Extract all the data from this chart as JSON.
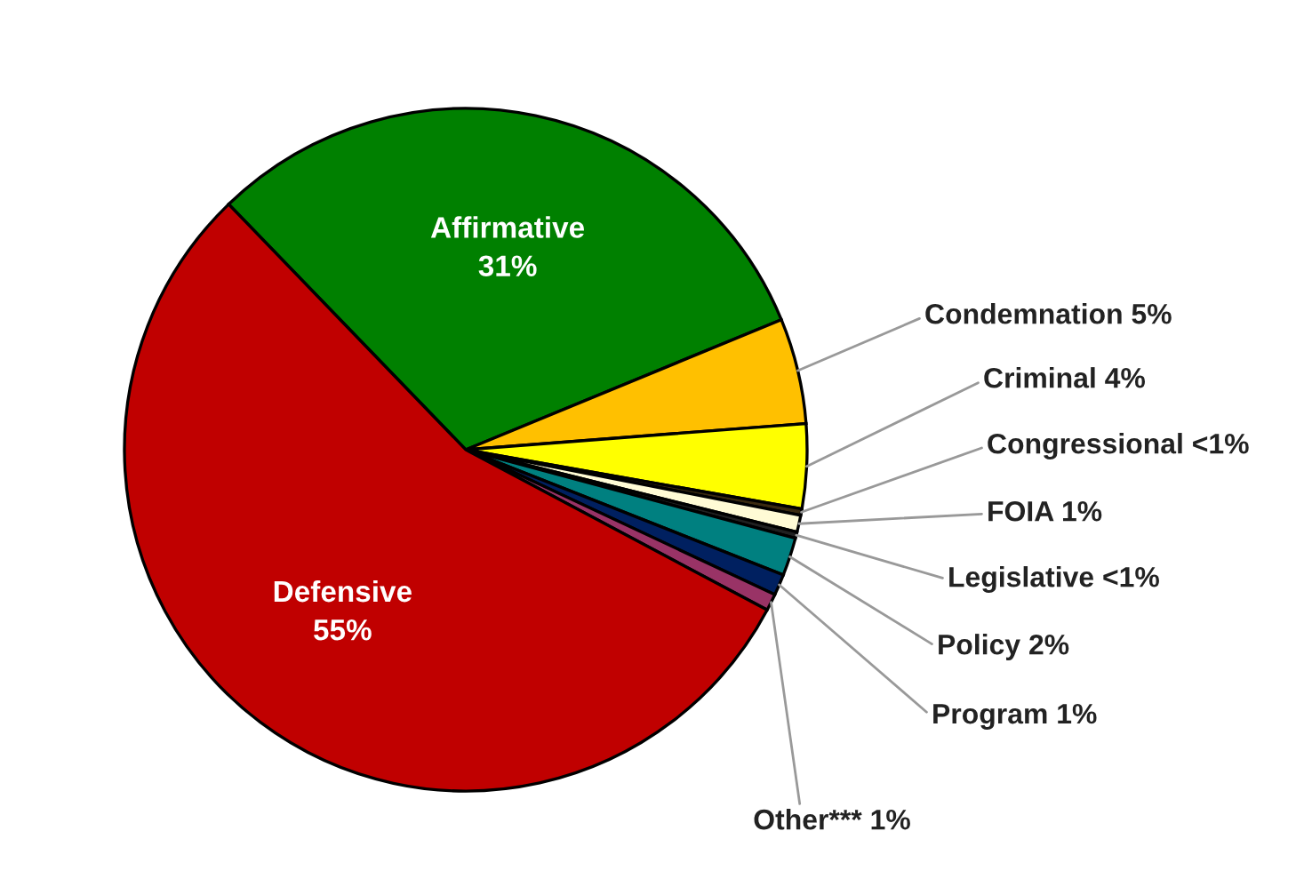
{
  "chart_data": {
    "type": "pie",
    "categories": [
      "Affirmative",
      "Condemnation",
      "Criminal",
      "Congressional",
      "FOIA",
      "Legislative",
      "Policy",
      "Program",
      "Other***",
      "Defensive"
    ],
    "values": [
      31,
      5,
      4,
      0.3,
      0.8,
      0.3,
      1.8,
      1,
      0.8,
      55
    ],
    "value_labels": [
      "31%",
      "5%",
      "4%",
      "<1%",
      "1%",
      "<1%",
      "2%",
      "1%",
      "1%",
      "55%"
    ],
    "colors": [
      "#008000",
      "#ffc000",
      "#ffff00",
      "#3a2a10",
      "#fffbd5",
      "#202020",
      "#008080",
      "#002060",
      "#993366",
      "#c00000"
    ],
    "legend": false
  }
}
